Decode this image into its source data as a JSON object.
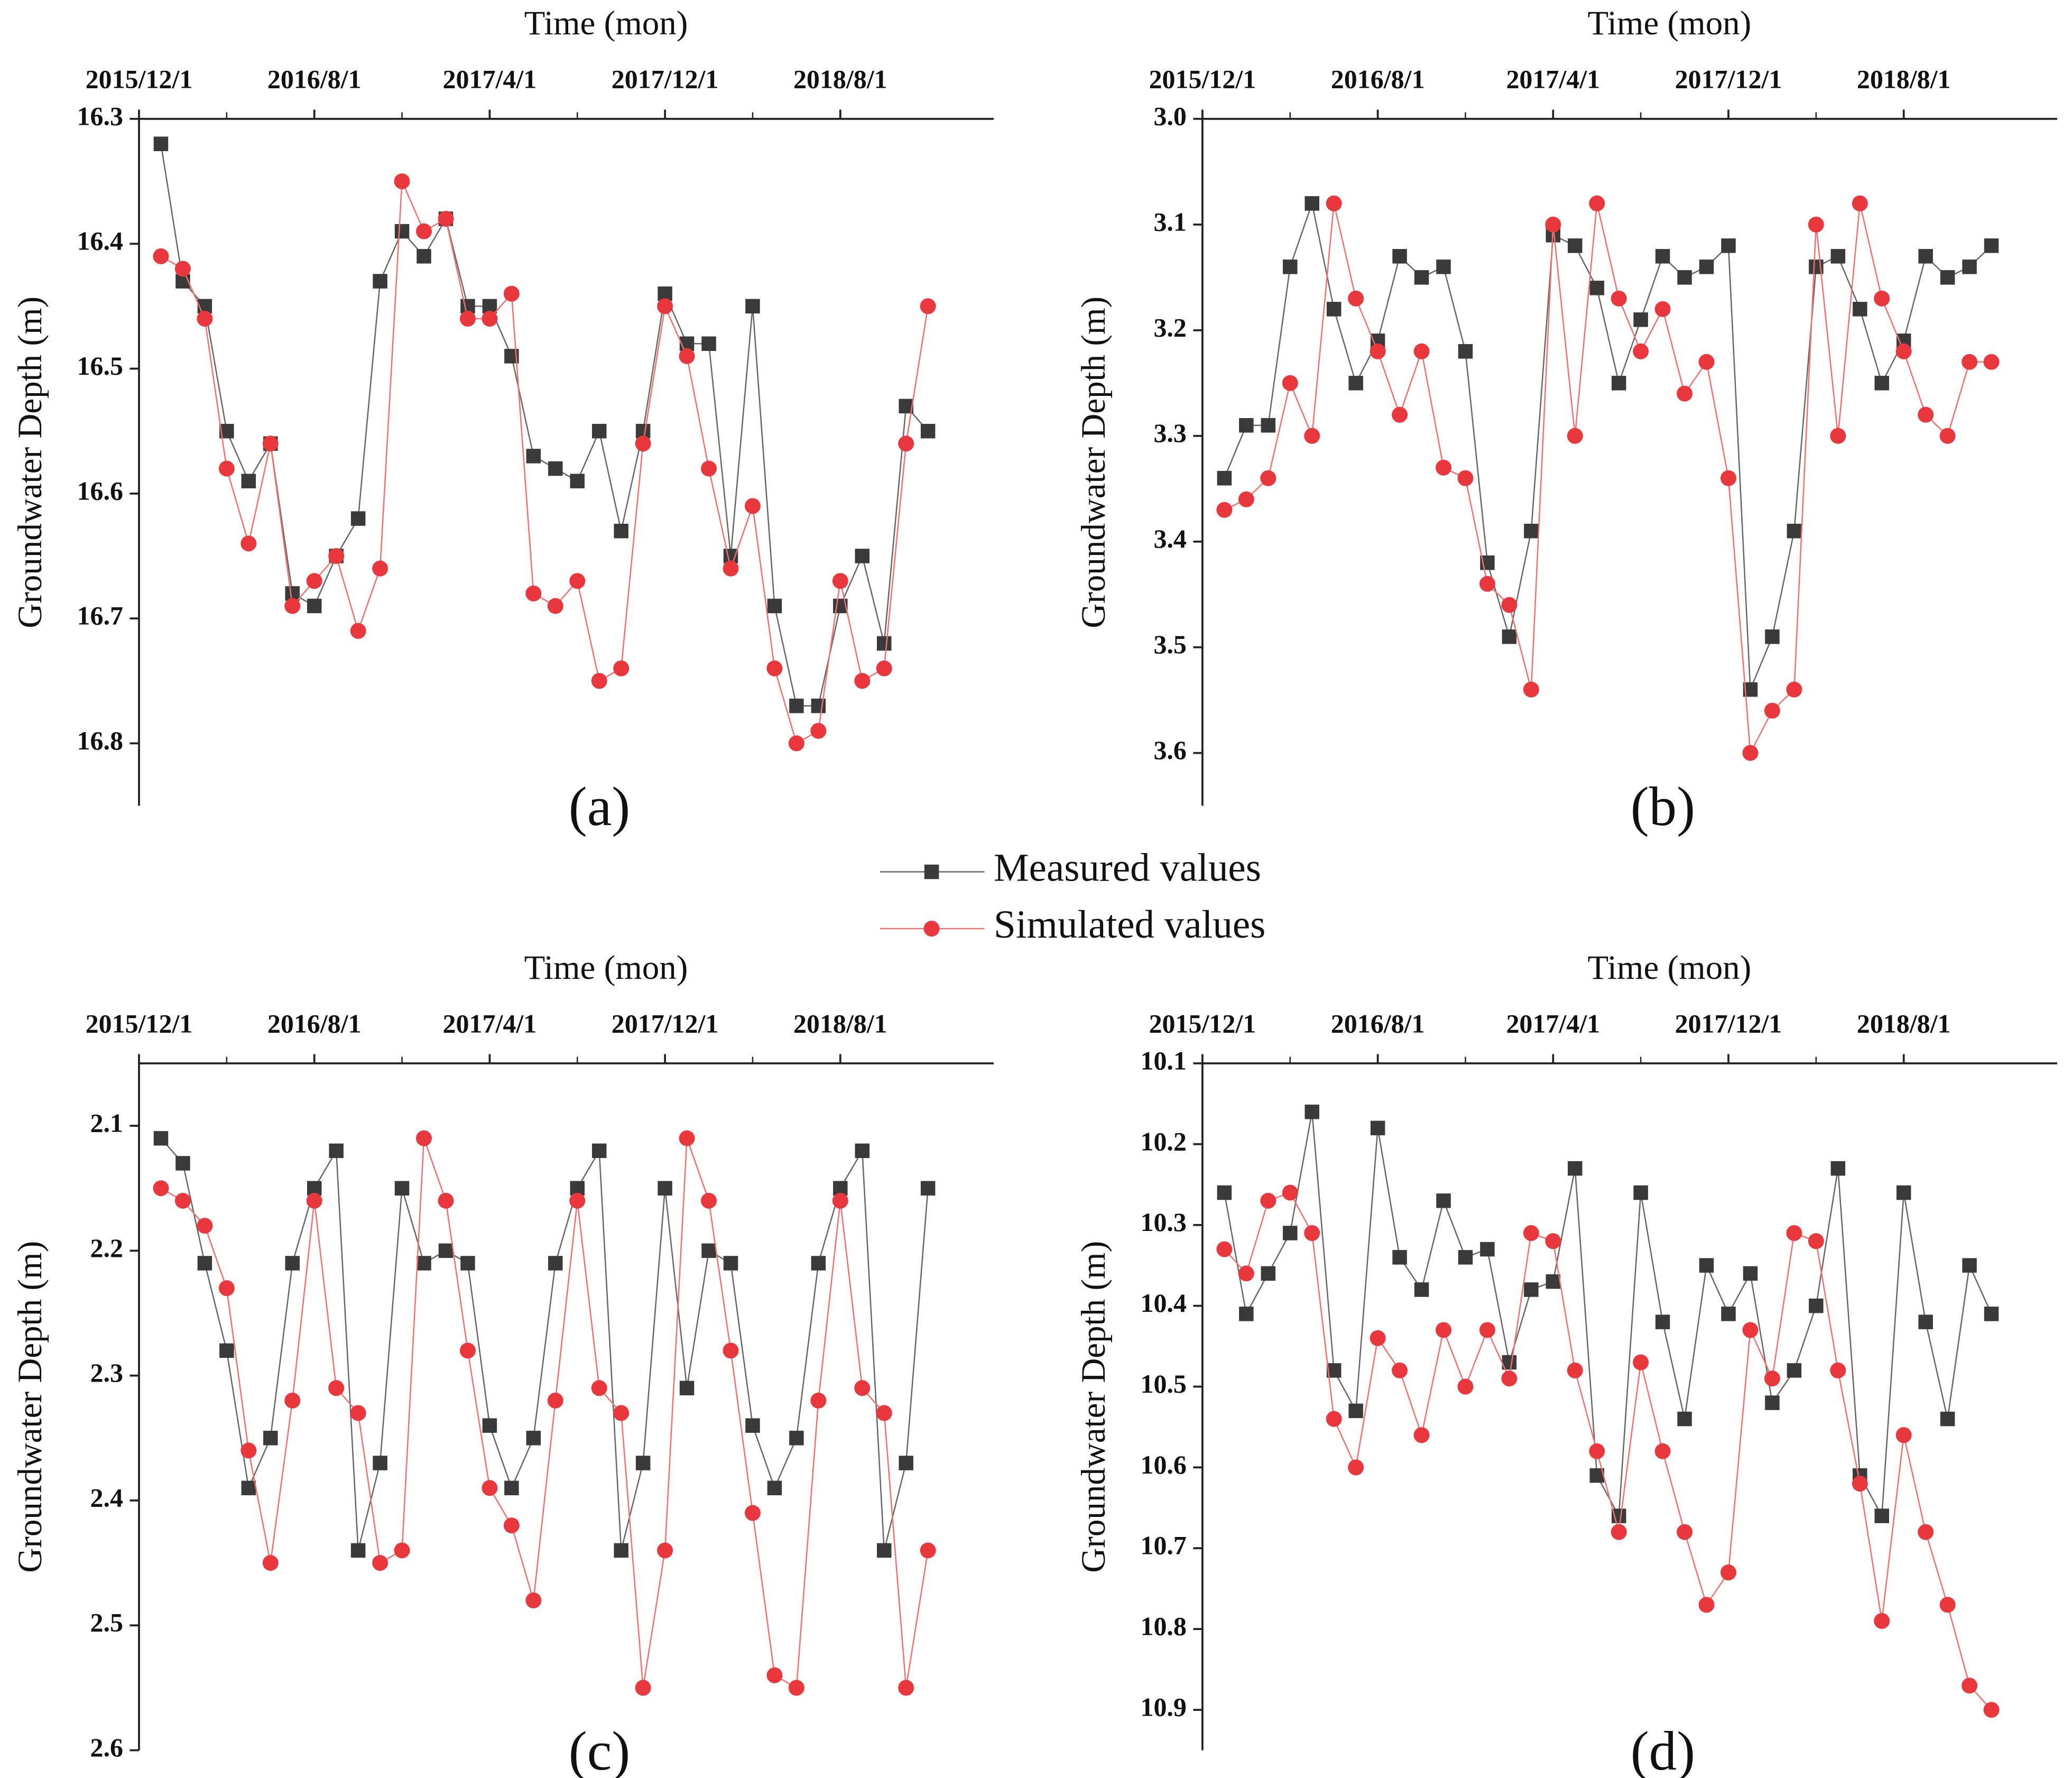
{
  "chart_data": [
    {
      "type": "line",
      "label": "(a)",
      "x_label": "Time (mon)",
      "y_label": "Groundwater Depth (m)",
      "x": [
        "2016/1/1",
        "2016/2/1",
        "2016/3/1",
        "2016/4/1",
        "2016/5/1",
        "2016/6/1",
        "2016/7/1",
        "2016/8/1",
        "2016/9/1",
        "2016/10/1",
        "2016/11/1",
        "2016/12/1",
        "2017/1/1",
        "2017/2/1",
        "2017/3/1",
        "2017/4/1",
        "2017/5/1",
        "2017/6/1",
        "2017/7/1",
        "2017/8/1",
        "2017/9/1",
        "2017/10/1",
        "2017/11/1",
        "2017/12/1",
        "2018/1/1",
        "2018/2/1",
        "2018/3/1",
        "2018/4/1",
        "2018/5/1",
        "2018/6/1",
        "2018/7/1",
        "2018/8/1",
        "2018/9/1",
        "2018/10/1",
        "2018/11/1",
        "2018/12/1"
      ],
      "xlim": [
        "2015/12/1",
        "2019/3/1"
      ],
      "xticks": [
        "2015/12/1",
        "2016/8/1",
        "2017/4/1",
        "2017/12/1",
        "2018/8/1"
      ],
      "ylim": [
        16.3,
        16.85
      ],
      "yticks": [
        16.3,
        16.4,
        16.5,
        16.6,
        16.7,
        16.8
      ],
      "y_inverted": true,
      "series": [
        {
          "name": "Measured values",
          "color": "#3a3a3a",
          "marker": "square",
          "values": [
            16.32,
            16.43,
            16.45,
            16.55,
            16.59,
            16.56,
            16.68,
            16.69,
            16.65,
            16.62,
            16.43,
            16.39,
            16.41,
            16.38,
            16.45,
            16.45,
            16.49,
            16.57,
            16.58,
            16.59,
            16.55,
            16.63,
            16.55,
            16.44,
            16.48,
            16.48,
            16.65,
            16.45,
            16.69,
            16.77,
            16.77,
            16.69,
            16.65,
            16.72,
            16.53,
            16.55
          ]
        },
        {
          "name": "Simulated values",
          "color": "#e8383d",
          "marker": "circle",
          "values": [
            16.41,
            16.42,
            16.46,
            16.58,
            16.64,
            16.56,
            16.69,
            16.67,
            16.65,
            16.71,
            16.66,
            16.35,
            16.39,
            16.38,
            16.46,
            16.46,
            16.44,
            16.68,
            16.69,
            16.67,
            16.75,
            16.74,
            16.56,
            16.45,
            16.49,
            16.58,
            16.66,
            16.61,
            16.74,
            16.8,
            16.79,
            16.67,
            16.75,
            16.74,
            16.56,
            16.45
          ]
        }
      ]
    },
    {
      "type": "line",
      "label": "(b)",
      "x_label": "Time (mon)",
      "y_label": "Groundwater Depth (m)",
      "x": [
        "2016/1/1",
        "2016/2/1",
        "2016/3/1",
        "2016/4/1",
        "2016/5/1",
        "2016/6/1",
        "2016/7/1",
        "2016/8/1",
        "2016/9/1",
        "2016/10/1",
        "2016/11/1",
        "2016/12/1",
        "2017/1/1",
        "2017/2/1",
        "2017/3/1",
        "2017/4/1",
        "2017/5/1",
        "2017/6/1",
        "2017/7/1",
        "2017/8/1",
        "2017/9/1",
        "2017/10/1",
        "2017/11/1",
        "2017/12/1",
        "2018/1/1",
        "2018/2/1",
        "2018/3/1",
        "2018/4/1",
        "2018/5/1",
        "2018/6/1",
        "2018/7/1",
        "2018/8/1",
        "2018/9/1",
        "2018/10/1",
        "2018/11/1",
        "2018/12/1"
      ],
      "xlim": [
        "2015/12/1",
        "2019/3/1"
      ],
      "xticks": [
        "2015/12/1",
        "2016/8/1",
        "2017/4/1",
        "2017/12/1",
        "2018/8/1"
      ],
      "ylim": [
        3.0,
        3.65
      ],
      "yticks": [
        {
          "value": 3,
          "label": "3.0"
        },
        3.1,
        3.2,
        3.3,
        3.4,
        3.5,
        3.6
      ],
      "y_inverted": true,
      "series": [
        {
          "color": "#3a3a3a",
          "marker": "square",
          "values": [
            3.34,
            3.29,
            3.29,
            3.14,
            3.08,
            3.18,
            3.25,
            3.21,
            3.13,
            3.15,
            3.14,
            3.22,
            3.42,
            3.49,
            3.39,
            3.11,
            3.12,
            3.16,
            3.25,
            3.19,
            3.13,
            3.15,
            3.14,
            3.12,
            3.54,
            3.49,
            3.39,
            3.14,
            3.13,
            3.18,
            3.25,
            3.21,
            3.13,
            3.15,
            3.14,
            3.12
          ]
        },
        {
          "color": "#e8383d",
          "marker": "circle",
          "values": [
            3.37,
            3.36,
            3.34,
            3.25,
            3.3,
            3.08,
            3.17,
            3.22,
            3.28,
            3.22,
            3.33,
            3.34,
            3.44,
            3.46,
            3.54,
            3.1,
            3.3,
            3.08,
            3.17,
            3.22,
            3.18,
            3.26,
            3.23,
            3.34,
            3.6,
            3.56,
            3.54,
            3.1,
            3.3,
            3.08,
            3.17,
            3.22,
            3.28,
            3.3,
            3.23,
            3.23
          ]
        }
      ]
    },
    {
      "type": "line",
      "label": "(c)",
      "x_label": "Time (mon)",
      "y_label": "Groundwater Depth (m)",
      "x": [
        "2016/1/1",
        "2016/2/1",
        "2016/3/1",
        "2016/4/1",
        "2016/5/1",
        "2016/6/1",
        "2016/7/1",
        "2016/8/1",
        "2016/9/1",
        "2016/10/1",
        "2016/11/1",
        "2016/12/1",
        "2017/1/1",
        "2017/2/1",
        "2017/3/1",
        "2017/4/1",
        "2017/5/1",
        "2017/6/1",
        "2017/7/1",
        "2017/8/1",
        "2017/9/1",
        "2017/10/1",
        "2017/11/1",
        "2017/12/1",
        "2018/1/1",
        "2018/2/1",
        "2018/3/1",
        "2018/4/1",
        "2018/5/1",
        "2018/6/1",
        "2018/7/1",
        "2018/8/1",
        "2018/9/1",
        "2018/10/1",
        "2018/11/1",
        "2018/12/1"
      ],
      "xlim": [
        "2015/12/1",
        "2019/3/1"
      ],
      "xticks": [
        "2015/12/1",
        "2016/8/1",
        "2017/4/1",
        "2017/12/1",
        "2018/8/1"
      ],
      "ylim": [
        2.05,
        2.6
      ],
      "yticks": [
        2.1,
        2.2,
        2.3,
        2.4,
        2.5,
        2.6
      ],
      "y_inverted": true,
      "series": [
        {
          "color": "#3a3a3a",
          "marker": "square",
          "values": [
            2.11,
            2.13,
            2.21,
            2.28,
            2.39,
            2.35,
            2.21,
            2.15,
            2.12,
            2.44,
            2.37,
            2.15,
            2.21,
            2.2,
            2.21,
            2.34,
            2.39,
            2.35,
            2.21,
            2.15,
            2.12,
            2.44,
            2.37,
            2.15,
            2.31,
            2.2,
            2.21,
            2.34,
            2.39,
            2.35,
            2.21,
            2.15,
            2.12,
            2.44,
            2.37,
            2.15
          ]
        },
        {
          "color": "#e8383d",
          "marker": "circle",
          "values": [
            2.15,
            2.16,
            2.18,
            2.23,
            2.36,
            2.45,
            2.32,
            2.16,
            2.31,
            2.33,
            2.45,
            2.44,
            2.11,
            2.16,
            2.28,
            2.39,
            2.42,
            2.48,
            2.32,
            2.16,
            2.31,
            2.33,
            2.55,
            2.44,
            2.11,
            2.16,
            2.28,
            2.41,
            2.54,
            2.55,
            2.32,
            2.16,
            2.31,
            2.33,
            2.55,
            2.44
          ]
        }
      ]
    },
    {
      "type": "line",
      "label": "(d)",
      "x_label": "Time (mon)",
      "y_label": "Groundwater Depth (m)",
      "x": [
        "2016/1/1",
        "2016/2/1",
        "2016/3/1",
        "2016/4/1",
        "2016/5/1",
        "2016/6/1",
        "2016/7/1",
        "2016/8/1",
        "2016/9/1",
        "2016/10/1",
        "2016/11/1",
        "2016/12/1",
        "2017/1/1",
        "2017/2/1",
        "2017/3/1",
        "2017/4/1",
        "2017/5/1",
        "2017/6/1",
        "2017/7/1",
        "2017/8/1",
        "2017/9/1",
        "2017/10/1",
        "2017/11/1",
        "2017/12/1",
        "2018/1/1",
        "2018/2/1",
        "2018/3/1",
        "2018/4/1",
        "2018/5/1",
        "2018/6/1",
        "2018/7/1",
        "2018/8/1",
        "2018/9/1",
        "2018/10/1",
        "2018/11/1",
        "2018/12/1"
      ],
      "xlim": [
        "2015/12/1",
        "2019/3/1"
      ],
      "xticks": [
        "2015/12/1",
        "2016/8/1",
        "2017/4/1",
        "2017/12/1",
        "2018/8/1"
      ],
      "ylim": [
        10.1,
        10.95
      ],
      "yticks": [
        10.1,
        10.2,
        10.3,
        10.4,
        10.5,
        10.6,
        10.7,
        10.8,
        10.9
      ],
      "y_inverted": true,
      "series": [
        {
          "color": "#3a3a3a",
          "marker": "square",
          "values": [
            10.26,
            10.41,
            10.36,
            10.31,
            10.16,
            10.48,
            10.53,
            10.18,
            10.34,
            10.38,
            10.27,
            10.34,
            10.33,
            10.47,
            10.38,
            10.37,
            10.23,
            10.61,
            10.66,
            10.26,
            10.42,
            10.54,
            10.35,
            10.41,
            10.36,
            10.52,
            10.48,
            10.4,
            10.23,
            10.61,
            10.66,
            10.26,
            10.42,
            10.54,
            10.35,
            10.41
          ]
        },
        {
          "color": "#e8383d",
          "marker": "circle",
          "values": [
            10.33,
            10.36,
            10.27,
            10.26,
            10.31,
            10.54,
            10.6,
            10.44,
            10.48,
            10.56,
            10.43,
            10.5,
            10.43,
            10.49,
            10.31,
            10.32,
            10.48,
            10.58,
            10.68,
            10.47,
            10.58,
            10.68,
            10.77,
            10.73,
            10.43,
            10.49,
            10.31,
            10.32,
            10.48,
            10.62,
            10.79,
            10.56,
            10.68,
            10.77,
            10.87,
            10.9
          ]
        }
      ]
    }
  ]
}
